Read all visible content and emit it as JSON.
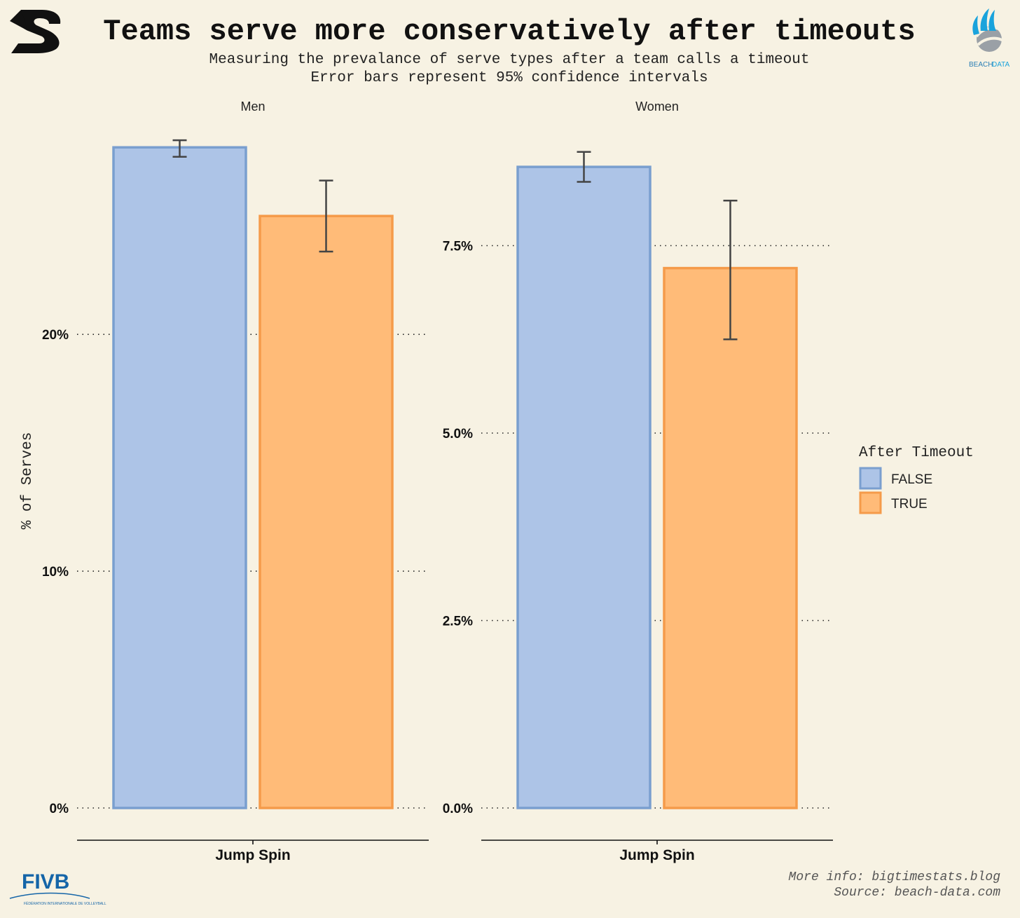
{
  "title": "Teams serve more conservatively after timeouts",
  "subtitle_line1": "Measuring the prevalance of serve types after a team calls a timeout",
  "subtitle_line2": "Error bars represent 95% confidence intervals",
  "footer_line1": "More info: bigtimestats.blog",
  "footer_line2": "Source: beach-data.com",
  "logos": {
    "top_left": "bigtimestats-s-logo",
    "top_right": "beach-data-logo",
    "top_right_text_a": "BEACH",
    "top_right_text_b": "DATA",
    "bottom_left": "fivb-logo",
    "bottom_left_text": "FIVB",
    "bottom_left_sub": "FÉDÉRATION INTERNATIONALE DE VOLLEYBALL"
  },
  "colors": {
    "background": "#f7f2e3",
    "false_fill": "#adc4e7",
    "false_stroke": "#7a9fcf",
    "true_fill": "#ffbb78",
    "true_stroke": "#f59b4a",
    "errorbar": "#444444"
  },
  "chart_data": {
    "type": "bar",
    "ylabel": "% of Serves",
    "legend": {
      "title": "After Timeout",
      "position": "right",
      "entries": [
        {
          "key": "false",
          "label": "FALSE"
        },
        {
          "key": "true",
          "label": "TRUE"
        }
      ]
    },
    "grid": "dotted horizontal",
    "facets": [
      {
        "name": "Men",
        "categories": [
          "Jump Spin"
        ],
        "ylim": [
          0,
          28.5
        ],
        "ticks": [
          0,
          10,
          20
        ],
        "tick_labels": [
          "0%",
          "10%",
          "20%"
        ],
        "series": [
          {
            "name": "FALSE",
            "values": [
              27.9
            ],
            "ci_low": [
              27.5
            ],
            "ci_high": [
              28.2
            ]
          },
          {
            "name": "TRUE",
            "values": [
              25.0
            ],
            "ci_low": [
              23.5
            ],
            "ci_high": [
              26.5
            ]
          }
        ]
      },
      {
        "name": "Women",
        "categories": [
          "Jump Spin"
        ],
        "ylim": [
          0,
          9.0
        ],
        "ticks": [
          0,
          2.5,
          5,
          7.5
        ],
        "tick_labels": [
          "0.0%",
          "2.5%",
          "5.0%",
          "7.5%"
        ],
        "series": [
          {
            "name": "FALSE",
            "values": [
              8.55
            ],
            "ci_low": [
              8.35
            ],
            "ci_high": [
              8.75
            ]
          },
          {
            "name": "TRUE",
            "values": [
              7.2
            ],
            "ci_low": [
              6.25
            ],
            "ci_high": [
              8.1
            ]
          }
        ]
      }
    ]
  }
}
